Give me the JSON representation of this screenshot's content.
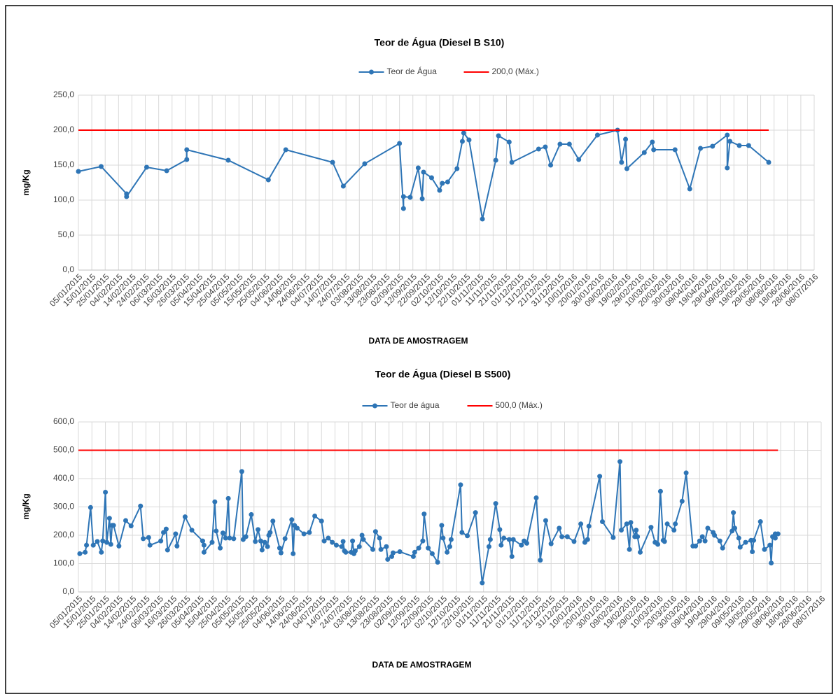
{
  "chart_data": [
    {
      "type": "line",
      "title": "Teor de Água (Diesel B S10)",
      "xlabel": "DATA DE AMOSTRAGEM",
      "ylabel": "mg/Kg",
      "xlim": [
        "05/01/2015",
        "08/07/2016"
      ],
      "xticks": [
        "05/01/2015",
        "15/01/2015",
        "25/01/2015",
        "04/02/2015",
        "14/02/2015",
        "24/02/2015",
        "06/03/2015",
        "16/03/2015",
        "26/03/2015",
        "05/04/2015",
        "15/04/2015",
        "25/04/2015",
        "05/05/2015",
        "15/05/2015",
        "25/05/2015",
        "04/06/2015",
        "14/06/2015",
        "24/06/2015",
        "04/07/2015",
        "14/07/2015",
        "24/07/2015",
        "03/08/2015",
        "13/08/2015",
        "23/08/2015",
        "02/09/2015",
        "12/09/2015",
        "22/09/2015",
        "02/10/2015",
        "12/10/2015",
        "22/10/2015",
        "01/11/2015",
        "11/11/2015",
        "21/11/2015",
        "01/12/2015",
        "11/12/2015",
        "21/12/2015",
        "31/12/2015",
        "10/01/2016",
        "20/01/2016",
        "30/01/2016",
        "09/02/2016",
        "19/02/2016",
        "29/02/2016",
        "10/03/2016",
        "20/03/2016",
        "30/03/2016",
        "09/04/2016",
        "19/04/2016",
        "29/04/2016",
        "09/05/2016",
        "19/05/2016",
        "29/05/2016",
        "08/06/2016",
        "18/06/2016",
        "28/06/2016",
        "08/07/2016"
      ],
      "ylim": [
        0,
        250
      ],
      "yticks": [
        {
          "value": 0,
          "label": "0,0"
        },
        {
          "value": 50,
          "label": "50,0"
        },
        {
          "value": 100,
          "label": "100,0"
        },
        {
          "value": 150,
          "label": "150,0"
        },
        {
          "value": 200,
          "label": "200,0"
        },
        {
          "value": 250,
          "label": "250,0"
        }
      ],
      "grid": true,
      "legend": "top",
      "series": [
        {
          "name": "Teor de Água",
          "color": "#2e75b6",
          "marker": true,
          "x": [
            "05/01/2015",
            "22/01/2015",
            "10/02/2015",
            "10/02/2015",
            "25/02/2015",
            "12/03/2015",
            "27/03/2015",
            "27/03/2015",
            "27/04/2015",
            "27/05/2015",
            "09/06/2015",
            "14/07/2015",
            "22/07/2015",
            "07/08/2015",
            "02/09/2015",
            "05/09/2015",
            "05/09/2015",
            "10/09/2015",
            "16/09/2015",
            "19/09/2015",
            "20/09/2015",
            "26/09/2015",
            "02/10/2015",
            "04/10/2015",
            "08/10/2015",
            "15/10/2015",
            "19/10/2015",
            "20/10/2015",
            "24/10/2015",
            "03/11/2015",
            "13/11/2015",
            "15/11/2015",
            "23/11/2015",
            "25/11/2015",
            "15/12/2015",
            "20/12/2015",
            "24/12/2015",
            "31/12/2015",
            "07/01/2016",
            "14/01/2016",
            "28/01/2016",
            "12/02/2016",
            "15/02/2016",
            "18/02/2016",
            "19/02/2016",
            "03/03/2016",
            "09/03/2016",
            "10/03/2016",
            "26/03/2016",
            "06/04/2016",
            "14/04/2016",
            "23/04/2016",
            "04/05/2016",
            "04/05/2016",
            "06/05/2016",
            "13/05/2016",
            "20/05/2016",
            "04/06/2016"
          ],
          "values": [
            141,
            148,
            109,
            105,
            147,
            142,
            158,
            172,
            157,
            129,
            172,
            154,
            120,
            152,
            181,
            88,
            105,
            104,
            146,
            102,
            140,
            132,
            114,
            124,
            126,
            145,
            184,
            196,
            186,
            73,
            157,
            192,
            183,
            154,
            173,
            176,
            150,
            180,
            180,
            158,
            193,
            200,
            154,
            187,
            145,
            168,
            183,
            172,
            172,
            116,
            174,
            177,
            193,
            146,
            184,
            178,
            178,
            154
          ]
        },
        {
          "name": "200,0 (Máx.)",
          "color": "#ff0000",
          "marker": false,
          "x": [
            "05/01/2015",
            "04/06/2016"
          ],
          "values": [
            200,
            200
          ]
        }
      ]
    },
    {
      "type": "line",
      "title": "Teor de Água (Diesel B S500)",
      "xlabel": "DATA DE AMOSTRAGEM",
      "ylabel": "mg/Kg",
      "xlim": [
        "05/01/2015",
        "08/07/2016"
      ],
      "xticks": [
        "05/01/2015",
        "15/01/2015",
        "25/01/2015",
        "04/02/2015",
        "14/02/2015",
        "24/02/2015",
        "06/03/2015",
        "16/03/2015",
        "26/03/2015",
        "05/04/2015",
        "15/04/2015",
        "25/04/2015",
        "05/05/2015",
        "15/05/2015",
        "25/05/2015",
        "04/06/2015",
        "14/06/2015",
        "24/06/2015",
        "04/07/2015",
        "14/07/2015",
        "24/07/2015",
        "03/08/2015",
        "13/08/2015",
        "23/08/2015",
        "02/09/2015",
        "12/09/2015",
        "22/09/2015",
        "02/10/2015",
        "12/10/2015",
        "22/10/2015",
        "01/11/2015",
        "11/11/2015",
        "21/11/2015",
        "01/12/2015",
        "11/12/2015",
        "21/12/2015",
        "31/12/2015",
        "10/01/2016",
        "20/01/2016",
        "30/01/2016",
        "09/02/2016",
        "19/02/2016",
        "29/02/2016",
        "10/03/2016",
        "20/03/2016",
        "30/03/2016",
        "09/04/2016",
        "19/04/2016",
        "29/04/2016",
        "09/05/2016",
        "19/05/2016",
        "29/05/2016",
        "08/06/2016",
        "18/06/2016",
        "28/06/2016",
        "08/07/2016"
      ],
      "ylim": [
        0,
        600
      ],
      "yticks": [
        {
          "value": 0,
          "label": "0,0"
        },
        {
          "value": 100,
          "label": "100,0"
        },
        {
          "value": 200,
          "label": "200,0"
        },
        {
          "value": 300,
          "label": "300,0"
        },
        {
          "value": 400,
          "label": "400,0"
        },
        {
          "value": 500,
          "label": "500,0"
        },
        {
          "value": 600,
          "label": "600,0"
        }
      ],
      "grid": true,
      "legend": "top",
      "series": [
        {
          "name": "Teor de água",
          "color": "#2e75b6",
          "marker": true,
          "x": [
            "06/01/2015",
            "10/01/2015",
            "11/01/2015",
            "14/01/2015",
            "16/01/2015",
            "19/01/2015",
            "22/01/2015",
            "23/01/2015",
            "25/01/2015",
            "26/01/2015",
            "28/01/2015",
            "29/01/2015",
            "30/01/2015",
            "31/01/2015",
            "04/02/2015",
            "09/02/2015",
            "13/02/2015",
            "20/02/2015",
            "22/02/2015",
            "26/02/2015",
            "27/02/2015",
            "07/03/2015",
            "09/03/2015",
            "11/03/2015",
            "12/03/2015",
            "18/03/2015",
            "19/03/2015",
            "25/03/2015",
            "30/03/2015",
            "07/04/2015",
            "08/04/2015",
            "08/04/2015",
            "14/04/2015",
            "16/04/2015",
            "17/04/2015",
            "20/04/2015",
            "22/04/2015",
            "24/04/2015",
            "26/04/2015",
            "27/04/2015",
            "30/04/2015",
            "06/05/2015",
            "07/05/2015",
            "09/05/2015",
            "13/05/2015",
            "16/05/2015",
            "18/05/2015",
            "20/05/2015",
            "21/05/2015",
            "23/05/2015",
            "25/05/2015",
            "26/05/2015",
            "27/05/2015",
            "29/05/2015",
            "03/06/2015",
            "04/06/2015",
            "07/06/2015",
            "12/06/2015",
            "13/06/2015",
            "14/06/2015",
            "16/06/2015",
            "21/06/2015",
            "25/06/2015",
            "29/06/2015",
            "04/07/2015",
            "06/07/2015",
            "09/07/2015",
            "12/07/2015",
            "15/07/2015",
            "19/07/2015",
            "20/07/2015",
            "21/07/2015",
            "22/07/2015",
            "26/07/2015",
            "27/07/2015",
            "28/07/2015",
            "29/07/2015",
            "01/08/2015",
            "03/08/2015",
            "04/08/2015",
            "11/08/2015",
            "13/08/2015",
            "16/08/2015",
            "17/08/2015",
            "21/08/2015",
            "22/08/2015",
            "25/08/2015",
            "26/08/2015",
            "31/08/2015",
            "10/09/2015",
            "11/09/2015",
            "14/09/2015",
            "17/09/2015",
            "18/09/2015",
            "21/09/2015",
            "24/09/2015",
            "28/09/2015",
            "01/10/2015",
            "02/10/2015",
            "05/10/2015",
            "07/10/2015",
            "08/10/2015",
            "15/10/2015",
            "16/10/2015",
            "20/10/2015",
            "26/10/2015",
            "31/10/2015",
            "05/11/2015",
            "06/11/2015",
            "10/11/2015",
            "13/11/2015",
            "14/11/2015",
            "16/11/2015",
            "20/11/2015",
            "22/11/2015",
            "23/11/2015",
            "29/11/2015",
            "01/12/2015",
            "03/12/2015",
            "10/12/2015",
            "13/12/2015",
            "17/12/2015",
            "21/12/2015",
            "27/12/2015",
            "29/12/2015",
            "02/01/2016",
            "07/01/2016",
            "12/01/2016",
            "15/01/2016",
            "17/01/2016",
            "18/01/2016",
            "26/01/2016",
            "28/01/2016",
            "05/02/2016",
            "10/02/2016",
            "11/02/2016",
            "15/02/2016",
            "17/02/2016",
            "18/02/2016",
            "21/02/2016",
            "22/02/2016",
            "23/02/2016",
            "25/02/2016",
            "04/03/2016",
            "07/03/2016",
            "09/03/2016",
            "11/03/2016",
            "13/03/2016",
            "14/03/2016",
            "16/03/2016",
            "21/03/2016",
            "22/03/2016",
            "27/03/2016",
            "30/03/2016",
            "04/04/2016",
            "06/04/2016",
            "09/04/2016",
            "11/04/2016",
            "13/04/2016",
            "15/04/2016",
            "19/04/2016",
            "20/04/2016",
            "24/04/2016",
            "26/04/2016",
            "03/05/2016",
            "04/05/2016",
            "05/05/2016",
            "08/05/2016",
            "09/05/2016",
            "13/05/2016",
            "17/05/2016",
            "18/05/2016",
            "19/05/2016",
            "24/05/2016",
            "27/05/2016",
            "31/05/2016",
            "01/06/2016",
            "02/06/2016",
            "04/06/2016",
            "04/06/2016",
            "06/06/2016"
          ],
          "values": [
            135,
            140,
            165,
            298,
            165,
            178,
            140,
            180,
            352,
            175,
            260,
            168,
            235,
            235,
            162,
            252,
            233,
            303,
            188,
            192,
            165,
            180,
            210,
            222,
            148,
            205,
            162,
            265,
            218,
            180,
            165,
            140,
            175,
            318,
            215,
            155,
            208,
            190,
            330,
            190,
            188,
            425,
            185,
            195,
            273,
            178,
            220,
            180,
            148,
            175,
            160,
            200,
            210,
            250,
            155,
            138,
            188,
            255,
            135,
            235,
            225,
            205,
            210,
            268,
            250,
            180,
            190,
            175,
            165,
            160,
            178,
            145,
            140,
            140,
            180,
            135,
            145,
            160,
            200,
            185,
            150,
            213,
            190,
            150,
            160,
            115,
            125,
            138,
            142,
            125,
            140,
            155,
            180,
            275,
            155,
            135,
            105,
            235,
            190,
            140,
            160,
            185,
            378,
            210,
            198,
            280,
            32,
            160,
            185,
            312,
            220,
            165,
            190,
            185,
            125,
            185,
            165,
            180,
            172,
            332,
            112,
            252,
            170,
            225,
            195,
            195,
            178,
            240,
            175,
            185,
            232,
            408,
            248,
            192,
            460,
            218,
            240,
            150,
            245,
            195,
            218,
            195,
            140,
            228,
            175,
            168,
            355,
            182,
            178,
            240,
            218,
            240,
            320,
            420,
            162,
            162,
            180,
            195,
            180,
            225,
            210,
            200,
            180,
            155,
            215,
            280,
            225,
            190,
            158,
            175,
            182,
            142,
            182,
            248,
            150,
            165,
            102,
            195,
            205,
            190,
            205
          ]
        },
        {
          "name": "500,0 (Máx.)",
          "color": "#ff0000",
          "marker": false,
          "x": [
            "05/01/2015",
            "06/06/2016"
          ],
          "values": [
            500,
            500
          ]
        }
      ]
    }
  ]
}
